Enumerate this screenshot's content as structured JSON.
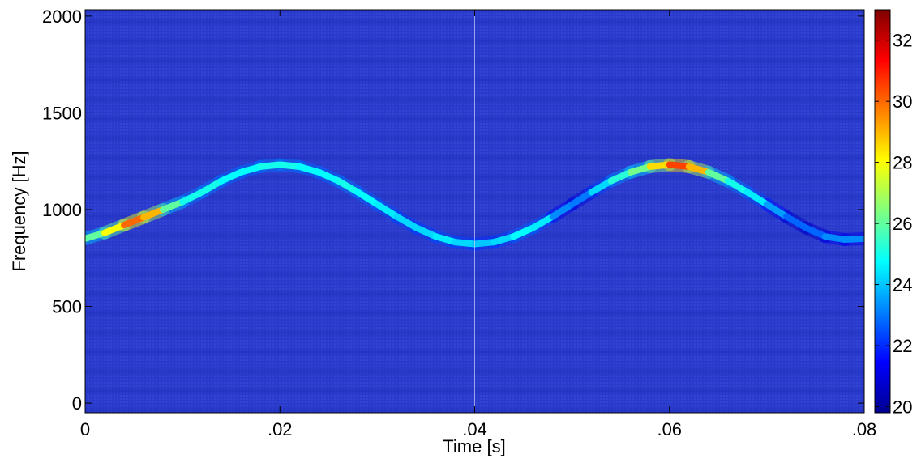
{
  "chart_data": {
    "type": "heatmap",
    "title": "",
    "xlabel": "Time [s]",
    "ylabel": "Frequency [Hz]",
    "xlim": [
      0,
      0.08
    ],
    "ylim": [
      -50,
      2033
    ],
    "xticks": [
      0,
      0.02,
      0.04,
      0.06,
      0.08
    ],
    "xtick_labels": [
      "0",
      ".02",
      ".04",
      ".06",
      ".08"
    ],
    "yticks": [
      0,
      500,
      1000,
      1500,
      2000
    ],
    "ytick_labels": [
      "0",
      "500",
      "1000",
      "1500",
      "2000"
    ],
    "colorbar": {
      "colormap": "jet",
      "range": [
        19.8,
        33
      ],
      "ticks": [
        20,
        22,
        24,
        26,
        28,
        30,
        32
      ],
      "tick_labels": [
        "20",
        "22",
        "24",
        "26",
        "28",
        "30",
        "32"
      ]
    },
    "background_level": 20.6,
    "marker_line_time": 0.04,
    "ridge": {
      "time": [
        0,
        0.002,
        0.004,
        0.006,
        0.008,
        0.01,
        0.012,
        0.014,
        0.016,
        0.018,
        0.02,
        0.022,
        0.024,
        0.026,
        0.028,
        0.03,
        0.032,
        0.034,
        0.036,
        0.038,
        0.04,
        0.042,
        0.044,
        0.046,
        0.048,
        0.05,
        0.052,
        0.054,
        0.056,
        0.058,
        0.06,
        0.062,
        0.064,
        0.066,
        0.068,
        0.07,
        0.072,
        0.074,
        0.076,
        0.078,
        0.08
      ],
      "frequency": [
        850,
        880,
        920,
        960,
        1000,
        1040,
        1090,
        1148,
        1193,
        1222,
        1232,
        1222,
        1193,
        1148,
        1090,
        1027,
        964,
        906,
        861,
        832,
        822,
        832,
        861,
        906,
        964,
        1027,
        1090,
        1148,
        1193,
        1222,
        1232,
        1222,
        1193,
        1148,
        1090,
        1027,
        964,
        906,
        861,
        845,
        850
      ],
      "level": [
        25,
        27,
        29,
        31,
        27,
        25,
        25,
        25,
        24.5,
        25,
        25,
        25,
        24.5,
        25,
        25,
        24.5,
        24.5,
        24,
        24.5,
        24.5,
        24,
        24,
        24.5,
        25,
        24,
        22.5,
        23.5,
        25,
        25.5,
        27,
        30,
        31,
        27,
        25,
        25,
        24,
        23,
        22.5,
        23,
        23.5,
        23
      ]
    }
  }
}
